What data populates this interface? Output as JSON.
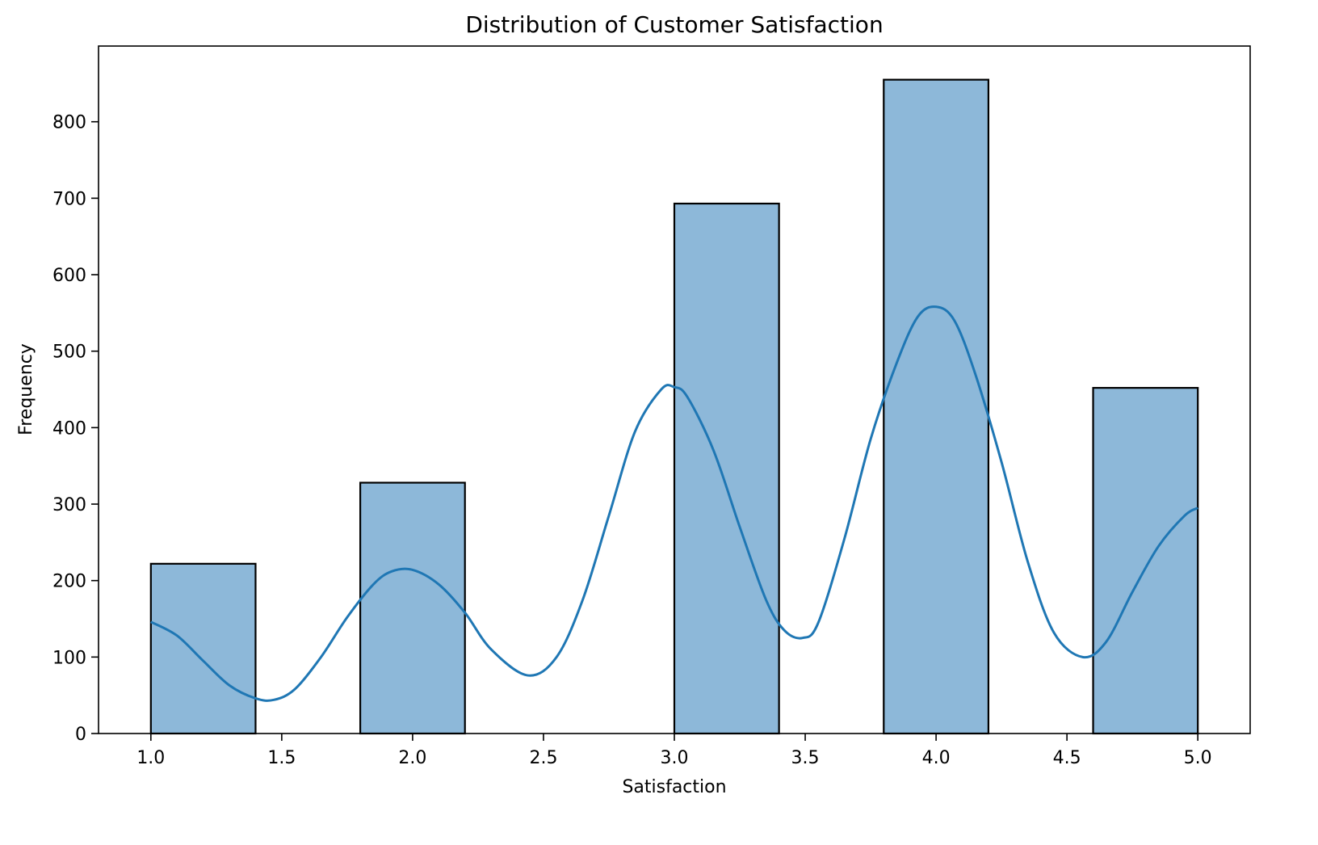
{
  "chart_data": {
    "type": "bar",
    "title": "Distribution of Customer Satisfaction",
    "xlabel": "Satisfaction",
    "ylabel": "Frequency",
    "xlim": [
      0.8,
      5.2
    ],
    "ylim": [
      0,
      899
    ],
    "xticks": [
      1.0,
      1.5,
      2.0,
      2.5,
      3.0,
      3.5,
      4.0,
      4.5,
      5.0
    ],
    "xtick_labels": [
      "1.0",
      "1.5",
      "2.0",
      "2.5",
      "3.0",
      "3.5",
      "4.0",
      "4.5",
      "5.0"
    ],
    "yticks": [
      0,
      100,
      200,
      300,
      400,
      500,
      600,
      700,
      800
    ],
    "ytick_labels": [
      "0",
      "100",
      "200",
      "300",
      "400",
      "500",
      "600",
      "700",
      "800"
    ],
    "bins": [
      {
        "x0": 1.0,
        "x1": 1.4,
        "value": 222
      },
      {
        "x0": 1.4,
        "x1": 1.8,
        "value": 0
      },
      {
        "x0": 1.8,
        "x1": 2.2,
        "value": 328
      },
      {
        "x0": 2.2,
        "x1": 2.6,
        "value": 0
      },
      {
        "x0": 2.6,
        "x1": 3.0,
        "value": 0
      },
      {
        "x0": 3.0,
        "x1": 3.4,
        "value": 693
      },
      {
        "x0": 3.4,
        "x1": 3.8,
        "value": 0
      },
      {
        "x0": 3.8,
        "x1": 4.2,
        "value": 855
      },
      {
        "x0": 4.2,
        "x1": 4.6,
        "value": 0
      },
      {
        "x0": 4.6,
        "x1": 5.0,
        "value": 452
      }
    ],
    "kde_curve": {
      "x": [
        1.0,
        1.1,
        1.2,
        1.3,
        1.4,
        1.47,
        1.55,
        1.65,
        1.75,
        1.85,
        1.92,
        2.0,
        2.1,
        2.2,
        2.3,
        2.44,
        2.55,
        2.65,
        2.75,
        2.85,
        2.95,
        3.0,
        3.05,
        3.15,
        3.25,
        3.35,
        3.42,
        3.49,
        3.55,
        3.65,
        3.75,
        3.85,
        3.93,
        4.0,
        4.07,
        4.15,
        4.25,
        4.35,
        4.45,
        4.56,
        4.65,
        4.75,
        4.85,
        4.95,
        5.0
      ],
      "y": [
        146,
        128,
        95,
        63,
        46,
        44,
        58,
        100,
        152,
        195,
        212,
        214,
        195,
        158,
        110,
        76,
        100,
        175,
        285,
        395,
        450,
        453,
        440,
        370,
        270,
        175,
        135,
        125,
        145,
        255,
        385,
        485,
        545,
        558,
        540,
        470,
        355,
        225,
        132,
        100,
        120,
        185,
        245,
        285,
        295
      ]
    },
    "bar_fill": "#8db8d9",
    "bar_edge": "#000000",
    "line_color": "#1f77b4",
    "grid": false,
    "legend": false
  }
}
